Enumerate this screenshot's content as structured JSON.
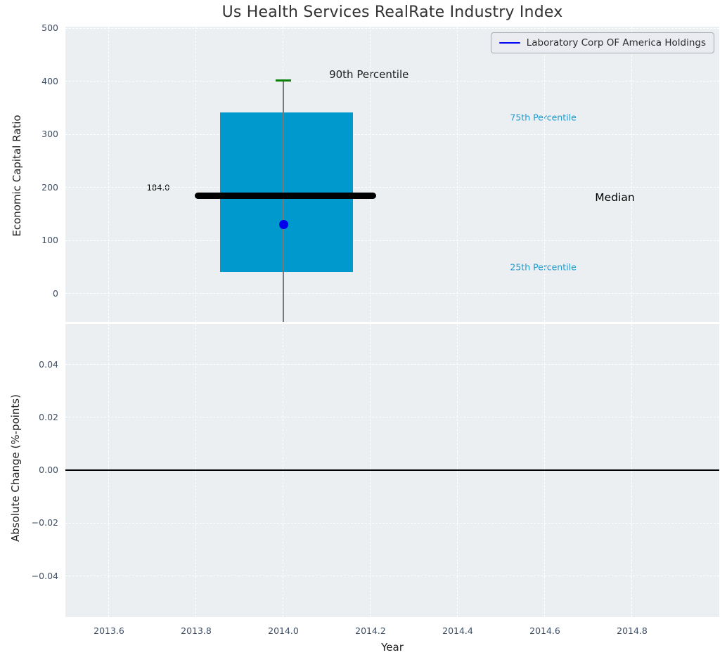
{
  "title": "Us Health Services RealRate Industry Index",
  "legend": {
    "label": "Laboratory Corp OF America Holdings",
    "line_color": "#0000f0"
  },
  "colors": {
    "plot_bg": "#eceff1",
    "grid": "#ffffff",
    "box_fill": "#0099cd",
    "whisker": "#787878",
    "p90_cap": "#0a800a",
    "median_line": "#000000",
    "company_dot": "#0000ee",
    "zero_line": "#000000",
    "tick_label": "#3e4e63",
    "percentile_text": "#1f9ace",
    "dark_text": "#1a1a1a"
  },
  "chart_data": [
    {
      "type": "box",
      "title": "Us Health Services RealRate Industry Index",
      "ylabel": "Economic Capital Ratio",
      "ylim": [
        -53,
        503
      ],
      "xlim": [
        2013.5,
        2015.0
      ],
      "yticks": [
        0,
        100,
        200,
        300,
        400,
        500
      ],
      "ytick_labels": [
        "0",
        "100",
        "200",
        "300",
        "400",
        "500"
      ],
      "xticks": [
        2013.6,
        2013.8,
        2014.0,
        2014.2,
        2014.4,
        2014.6,
        2014.8
      ],
      "grid": "dashed-white",
      "legend_position": "upper right",
      "box": {
        "x_center": 2014.0,
        "x_left": 2013.855,
        "x_right": 2014.16,
        "p90": 402,
        "p75": 341,
        "median": 184.0,
        "p25": 41,
        "whisker_low_clipped": true,
        "cap_half_width": 0.018
      },
      "median_line_x": [
        2013.797,
        2014.213
      ],
      "company_point": {
        "name": "Laboratory Corp OF America Holdings",
        "x": 2014.0,
        "y": 130
      },
      "annotations": [
        {
          "text": "90th Percentile",
          "x": 2014.105,
          "y": 413,
          "color": "#1a1a1a",
          "size": 15,
          "anchor": "start"
        },
        {
          "text": "75th Percentile",
          "x": 2014.52,
          "y": 332,
          "color": "#1f9ace",
          "size": 12.5,
          "anchor": "start"
        },
        {
          "text": "Median",
          "x": 2014.715,
          "y": 181,
          "color": "#000000",
          "size": 15.5,
          "anchor": "start"
        },
        {
          "text": "25th Percentile",
          "x": 2014.52,
          "y": 50,
          "color": "#1f9ace",
          "size": 12.5,
          "anchor": "start"
        },
        {
          "text": "184.0",
          "x": 2013.713,
          "y": 200,
          "color": "#000000",
          "size": 11.5,
          "anchor": "middle"
        }
      ]
    },
    {
      "type": "line",
      "ylabel": "Absolute Change (%-points)",
      "xlabel": "Year",
      "ylim": [
        -0.0555,
        0.0553
      ],
      "xlim": [
        2013.5,
        2015.0
      ],
      "yticks": [
        0.04,
        0.02,
        0.0,
        -0.02,
        -0.04
      ],
      "ytick_labels": [
        "0.04",
        "0.02",
        "0.00",
        "−0.02",
        "−0.04"
      ],
      "xticks": [
        2013.6,
        2013.8,
        2014.0,
        2014.2,
        2014.4,
        2014.6,
        2014.8
      ],
      "xtick_labels": [
        "2013.6",
        "2013.8",
        "2014.0",
        "2014.2",
        "2014.4",
        "2014.6",
        "2014.8"
      ],
      "zero_line_y": 0.0,
      "series": []
    }
  ]
}
